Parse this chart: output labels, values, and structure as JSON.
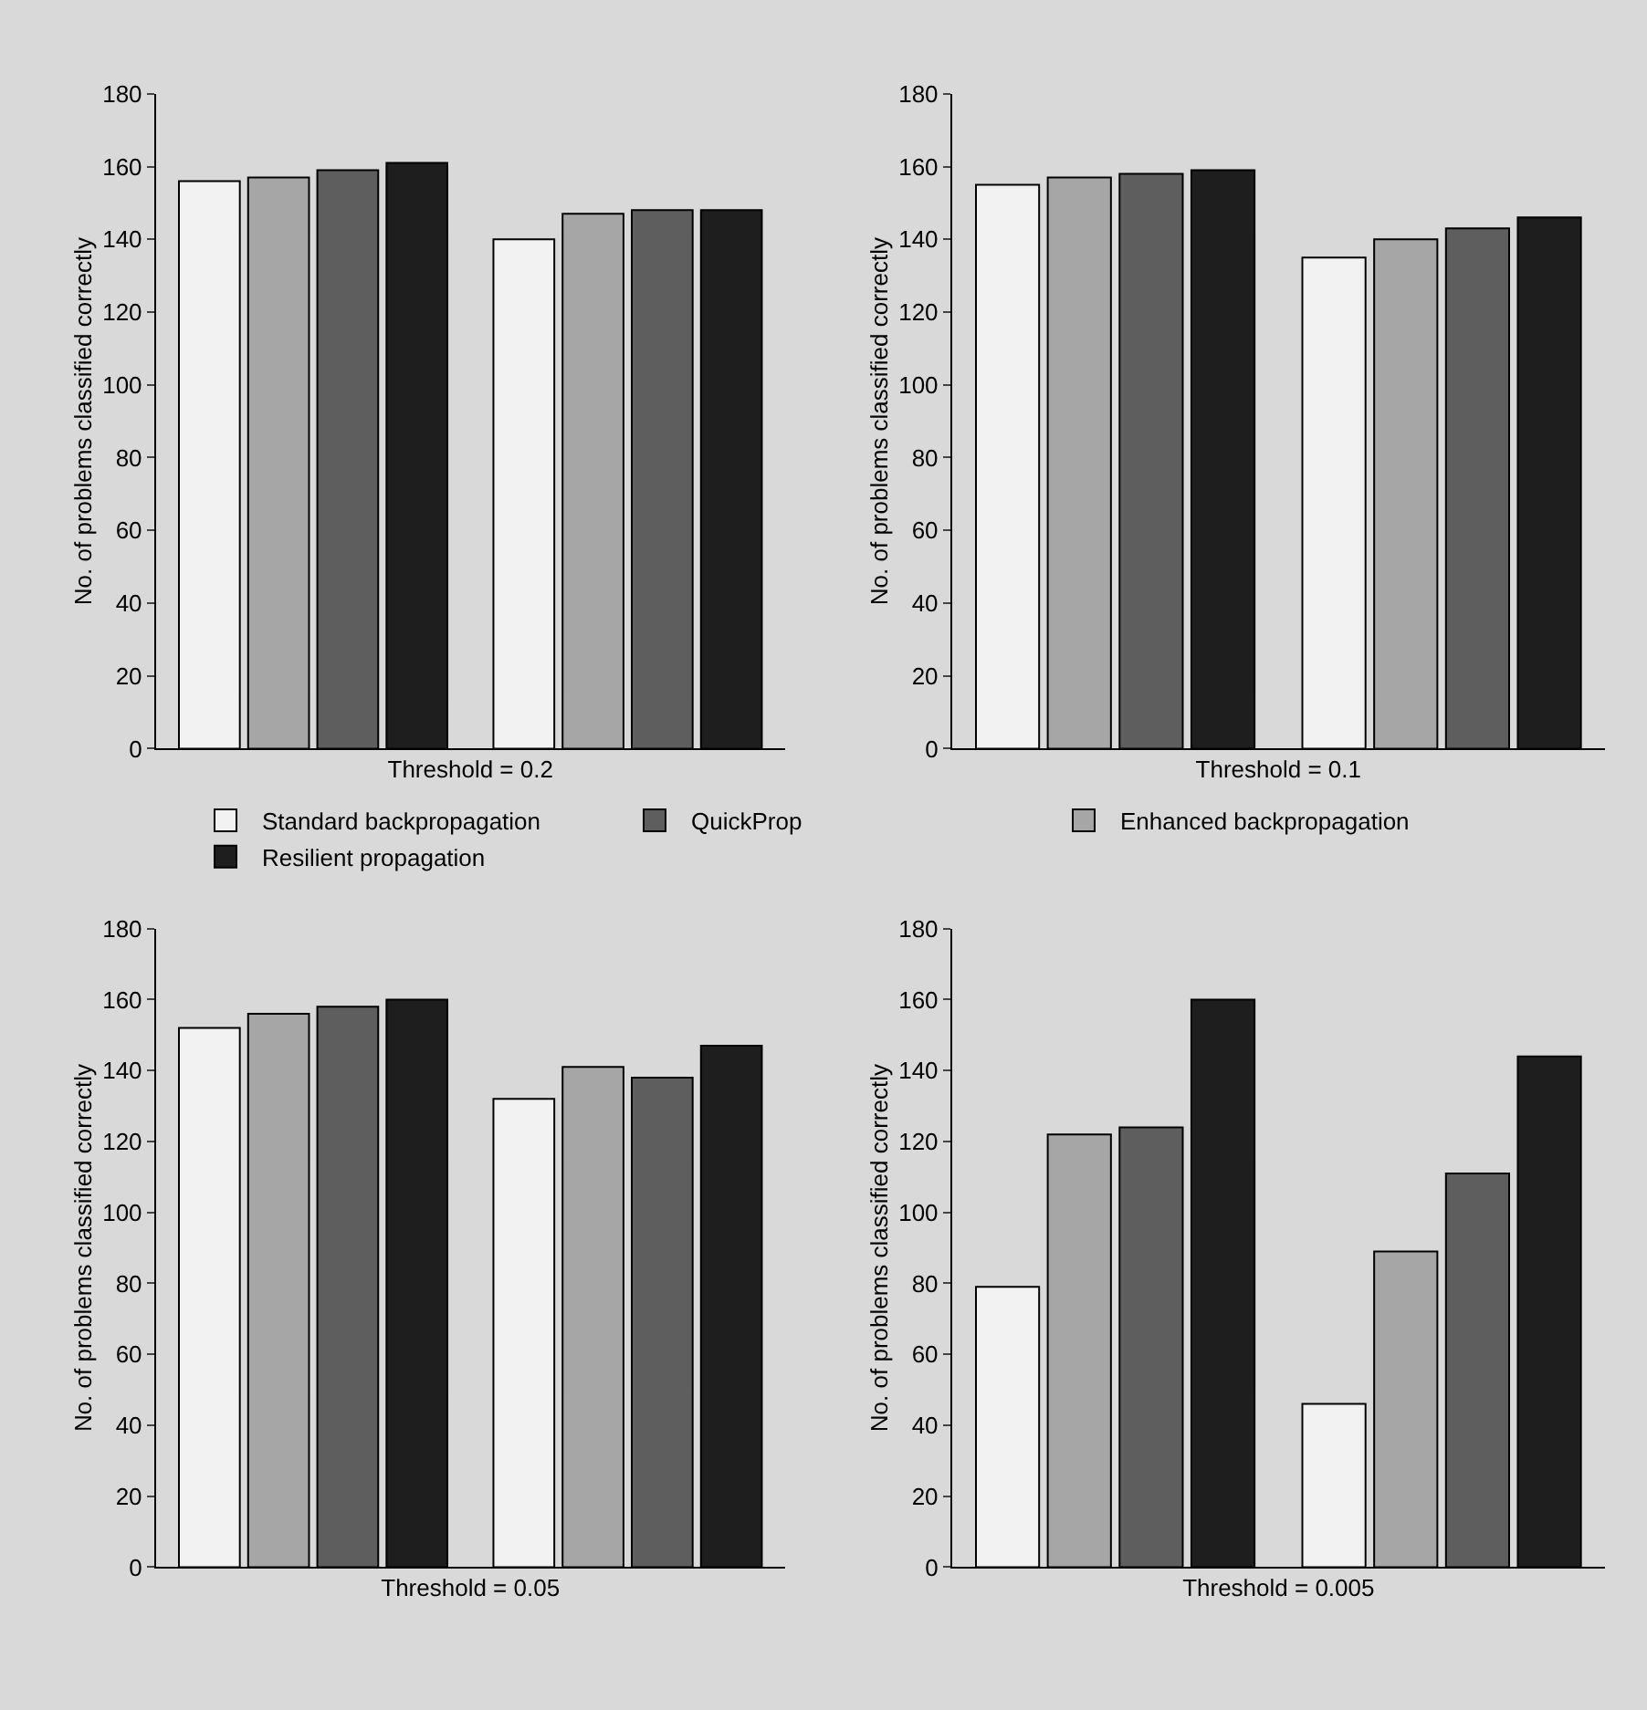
{
  "chart_data": [
    {
      "type": "bar",
      "xlabel": "Threshold = 0.2",
      "ylabel": "No. of problems classified correctly",
      "categories": [
        null,
        null
      ],
      "ylim": [
        0,
        180
      ],
      "yticks": [
        0,
        20,
        40,
        60,
        80,
        100,
        120,
        140,
        160,
        180
      ],
      "legend": "bottom",
      "series": [
        {
          "name": "Standard backpropagation",
          "color": "#f2f2f2",
          "values": [
            156,
            140
          ]
        },
        {
          "name": "Enhanced backpropagation",
          "color": "#a6a6a6",
          "values": [
            157,
            147
          ]
        },
        {
          "name": "QuickProp",
          "color": "#5e5e5e",
          "values": [
            159,
            148
          ]
        },
        {
          "name": "Resilient propagation",
          "color": "#1e1e1e",
          "values": [
            161,
            148
          ]
        }
      ]
    },
    {
      "type": "bar",
      "xlabel": "Threshold = 0.1",
      "ylabel": "No. of problems classified correctly",
      "categories": [
        null,
        null
      ],
      "ylim": [
        0,
        180
      ],
      "yticks": [
        0,
        20,
        40,
        60,
        80,
        100,
        120,
        140,
        160,
        180
      ],
      "series": [
        {
          "color": "#f2f2f2",
          "values": [
            155,
            135
          ]
        },
        {
          "color": "#a6a6a6",
          "values": [
            157,
            140
          ]
        },
        {
          "color": "#5e5e5e",
          "values": [
            158,
            143
          ]
        },
        {
          "color": "#1e1e1e",
          "values": [
            159,
            146
          ]
        }
      ]
    },
    {
      "type": "bar",
      "xlabel": "Threshold = 0.05",
      "ylabel": "No. of problems classified correctly",
      "categories": [
        null,
        null
      ],
      "ylim": [
        0,
        180
      ],
      "yticks": [
        0,
        20,
        40,
        60,
        80,
        100,
        120,
        140,
        160,
        180
      ],
      "series": [
        {
          "color": "#f2f2f2",
          "values": [
            152,
            132
          ]
        },
        {
          "color": "#a6a6a6",
          "values": [
            156,
            141
          ]
        },
        {
          "color": "#5e5e5e",
          "values": [
            158,
            138
          ]
        },
        {
          "color": "#1e1e1e",
          "values": [
            160,
            147
          ]
        }
      ]
    },
    {
      "type": "bar",
      "xlabel": "Threshold = 0.005",
      "ylabel": "No. of problems classified correctly",
      "categories": [
        null,
        null
      ],
      "ylim": [
        0,
        180
      ],
      "yticks": [
        0,
        20,
        40,
        60,
        80,
        100,
        120,
        140,
        160,
        180
      ],
      "series": [
        {
          "color": "#f2f2f2",
          "values": [
            79,
            46
          ]
        },
        {
          "color": "#a6a6a6",
          "values": [
            122,
            89
          ]
        },
        {
          "color": "#5e5e5e",
          "values": [
            124,
            111
          ]
        },
        {
          "color": "#1e1e1e",
          "values": [
            160,
            144
          ]
        }
      ]
    }
  ]
}
